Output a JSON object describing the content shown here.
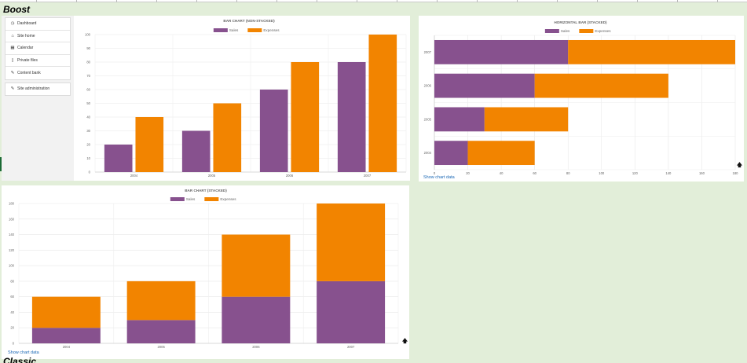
{
  "sections": {
    "boost": "Boost",
    "classic": "Classic"
  },
  "navigation": {
    "group1": [
      {
        "label": "Dashboard",
        "icon": "dashboard-icon",
        "glyph": "◷"
      },
      {
        "label": "Site home",
        "icon": "home-icon",
        "glyph": "⌂"
      },
      {
        "label": "Calendar",
        "icon": "calendar-icon",
        "glyph": "▦"
      },
      {
        "label": "Private files",
        "icon": "file-icon",
        "glyph": "▯"
      },
      {
        "label": "Content bank",
        "icon": "pencil-icon",
        "glyph": "✎"
      }
    ],
    "group2": [
      {
        "label": "Site administration",
        "icon": "wrench-icon",
        "glyph": "✎"
      }
    ]
  },
  "links": {
    "show_chart_data": "Show chart data"
  },
  "colors": {
    "sales": "#87518e",
    "expenses": "#f28400"
  },
  "chart_data": [
    {
      "type": "bar",
      "title": "BAR CHART (NON-STACKED)",
      "stacked": false,
      "categories": [
        "2004",
        "2005",
        "2006",
        "2007"
      ],
      "series": [
        {
          "name": "Sales",
          "values": [
            20,
            30,
            60,
            80
          ]
        },
        {
          "name": "Expenses",
          "values": [
            40,
            50,
            80,
            100
          ]
        }
      ],
      "ylim": [
        0,
        100
      ],
      "yticks": [
        0,
        10,
        20,
        30,
        40,
        50,
        60,
        70,
        80,
        90,
        100
      ],
      "legend": "top",
      "grid": true
    },
    {
      "type": "bar",
      "orientation": "horizontal",
      "title": "HORIZONTAL BAR (STACKED)",
      "stacked": true,
      "categories": [
        "2004",
        "2005",
        "2006",
        "2007"
      ],
      "series": [
        {
          "name": "Sales",
          "values": [
            20,
            30,
            60,
            80
          ]
        },
        {
          "name": "Expenses",
          "values": [
            40,
            50,
            80,
            100
          ]
        }
      ],
      "xlim": [
        0,
        180
      ],
      "xticks": [
        0,
        20,
        40,
        60,
        80,
        100,
        120,
        140,
        160,
        180
      ],
      "legend": "top",
      "grid": true
    },
    {
      "type": "bar",
      "title": "BAR CHART (STACKED)",
      "stacked": true,
      "categories": [
        "2004",
        "2005",
        "2006",
        "2007"
      ],
      "series": [
        {
          "name": "Sales",
          "values": [
            20,
            30,
            60,
            80
          ]
        },
        {
          "name": "Expenses",
          "values": [
            40,
            50,
            80,
            100
          ]
        }
      ],
      "ylim": [
        0,
        180
      ],
      "yticks": [
        0,
        20,
        40,
        60,
        80,
        100,
        120,
        140,
        160,
        180
      ],
      "legend": "top",
      "grid": true
    }
  ]
}
